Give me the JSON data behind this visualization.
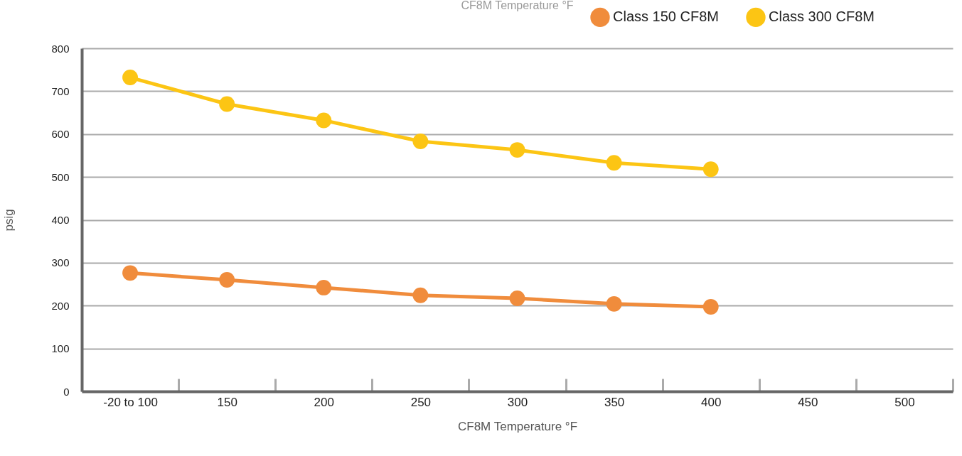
{
  "chart_data": {
    "type": "line",
    "title": "CF8M Temperature °F",
    "xlabel": "CF8M Temperature °F",
    "ylabel": "psig",
    "categories": [
      "-20 to 100",
      "150",
      "200",
      "250",
      "300",
      "350",
      "400",
      "450",
      "500"
    ],
    "series": [
      {
        "name": "Class 150 CF8M",
        "color": "#f08c3c",
        "values": [
          276,
          260,
          242,
          224,
          217,
          204,
          197,
          null,
          null
        ]
      },
      {
        "name": "Class 300 CF8M",
        "color": "#fcc514",
        "values": [
          732,
          670,
          632,
          583,
          563,
          533,
          518,
          null,
          null
        ]
      }
    ],
    "ylim": [
      0,
      800
    ],
    "yticks": [
      0,
      100,
      200,
      300,
      400,
      500,
      600,
      700,
      800
    ],
    "grid": "y",
    "legend": "top right",
    "marker": "circle",
    "line_style": "solid"
  }
}
